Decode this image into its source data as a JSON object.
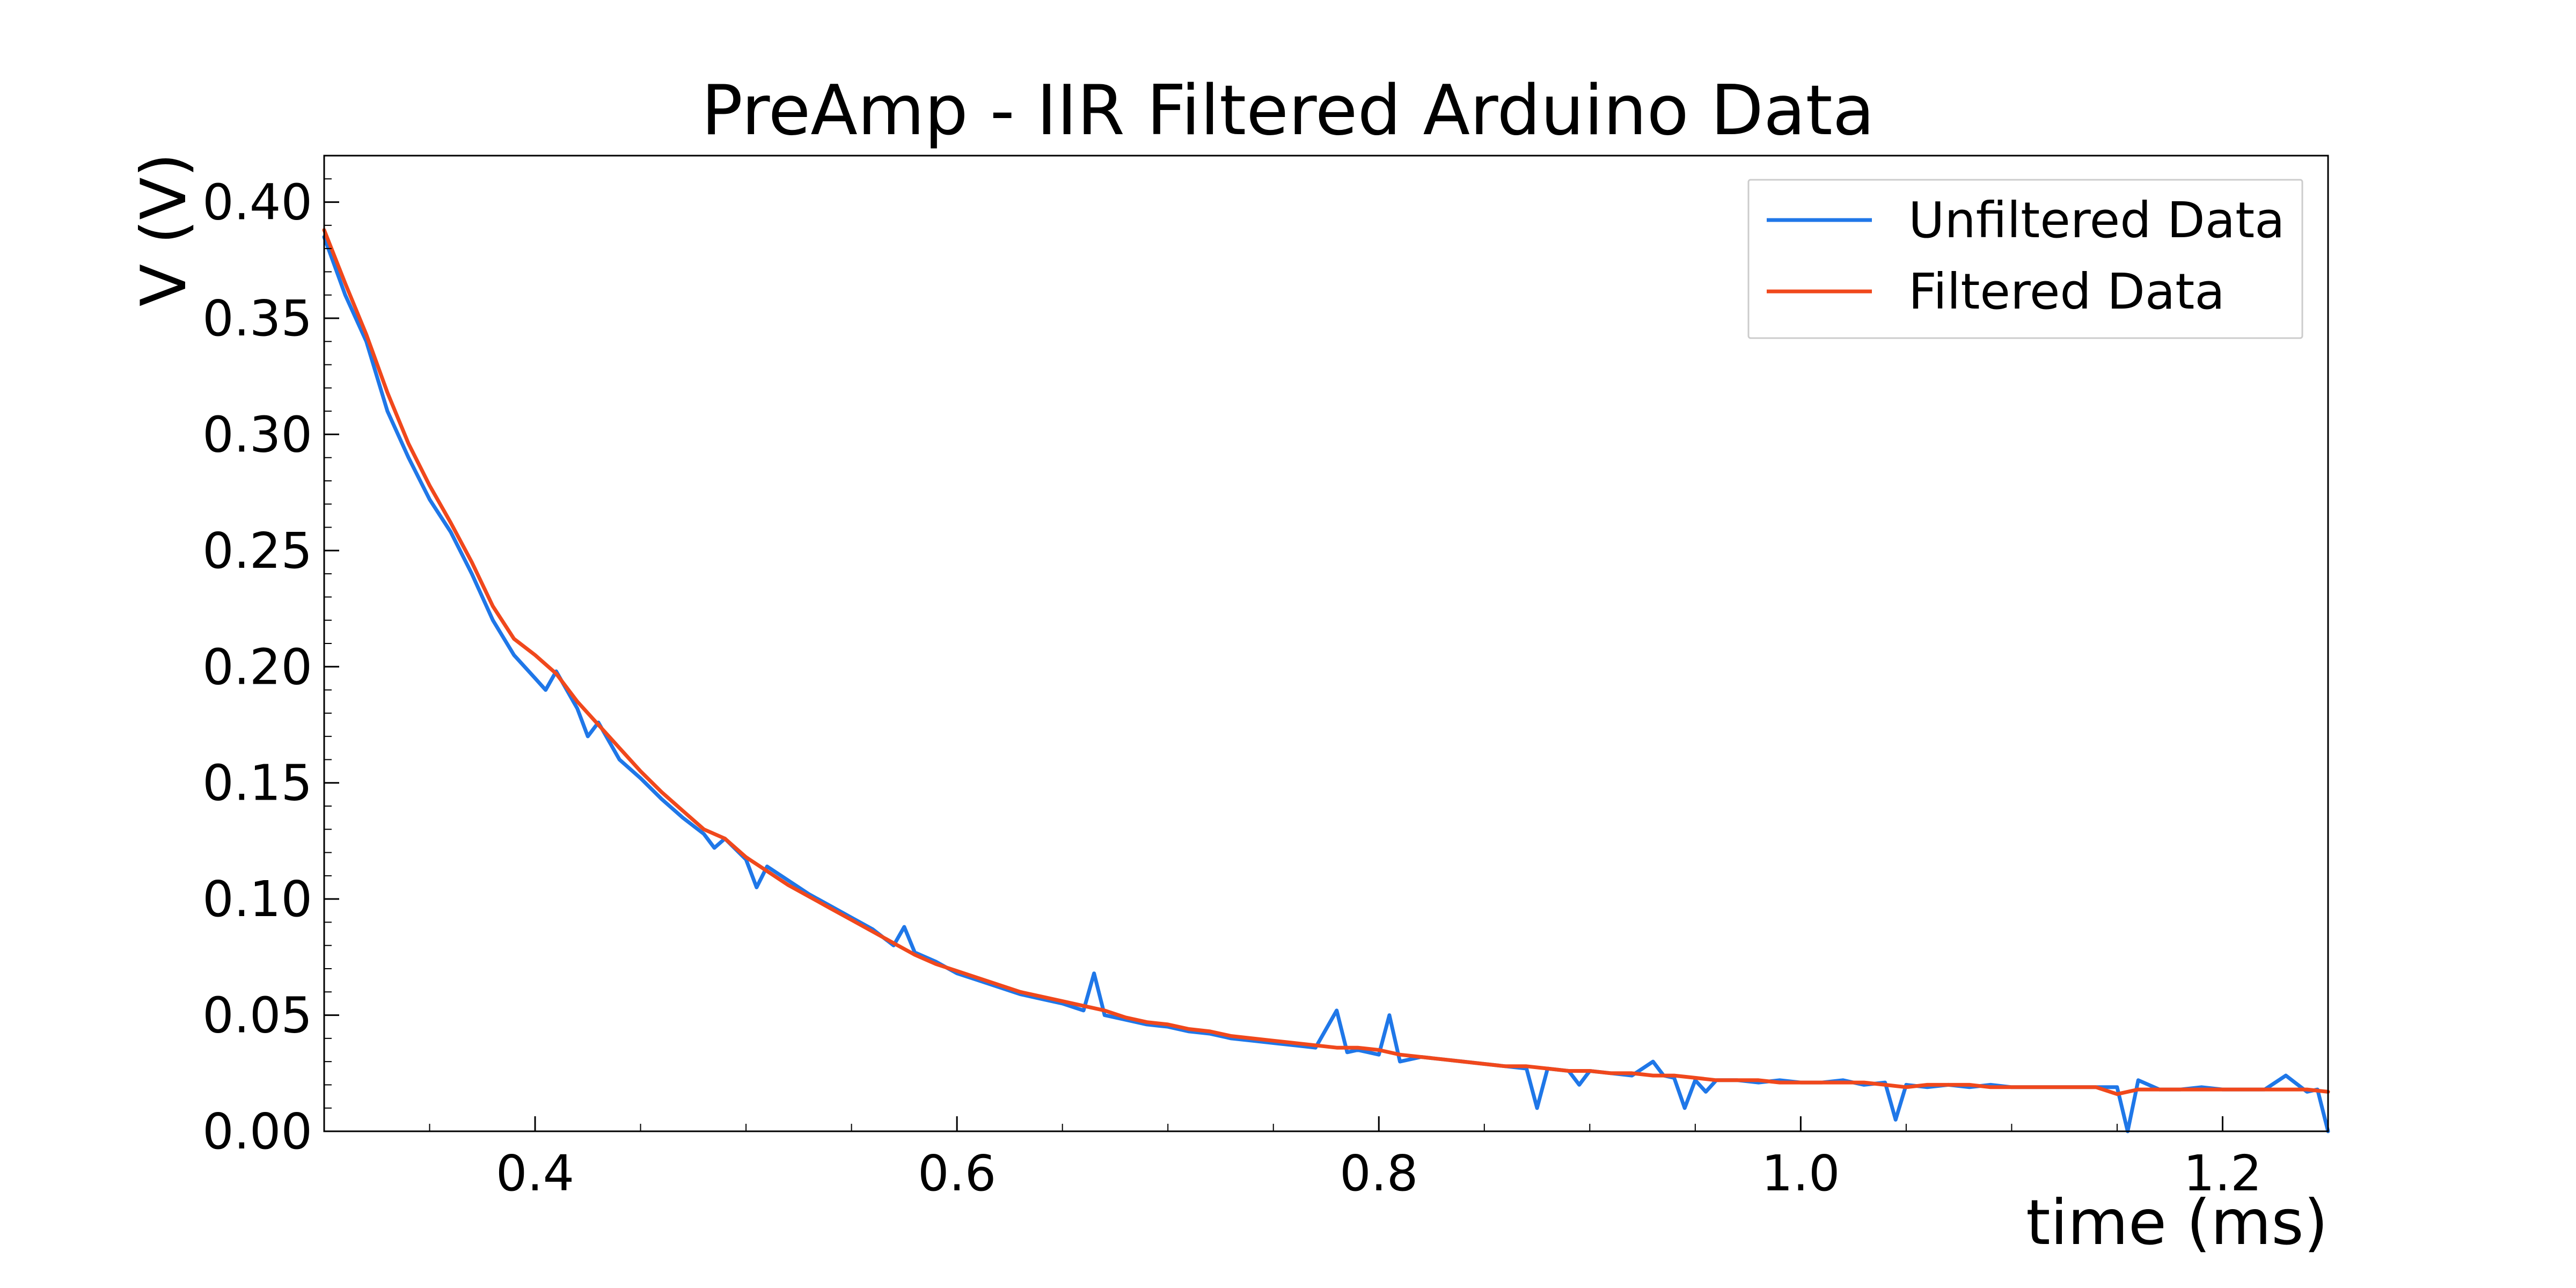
{
  "chart_data": {
    "type": "line",
    "title": "PreAmp - IIR Filtered Arduino Data",
    "xlabel": "time (ms)",
    "ylabel": "V (V)",
    "xlim": [
      0.3,
      1.25
    ],
    "ylim": [
      0.0,
      0.42
    ],
    "x_ticks": [
      0.4,
      0.6,
      0.8,
      1.0,
      1.2
    ],
    "x_tick_labels": [
      "0.4",
      "0.6",
      "0.8",
      "1.0",
      "1.2"
    ],
    "y_ticks": [
      0.0,
      0.05,
      0.1,
      0.15,
      0.2,
      0.25,
      0.3,
      0.35,
      0.4
    ],
    "y_tick_labels": [
      "0.00",
      "0.05",
      "0.10",
      "0.15",
      "0.20",
      "0.25",
      "0.30",
      "0.35",
      "0.40"
    ],
    "grid": false,
    "legend_position": "top-right",
    "series": [
      {
        "name": "Unfiltered Data",
        "color": "#1f77e8",
        "x": [
          0.3,
          0.31,
          0.32,
          0.33,
          0.335,
          0.34,
          0.35,
          0.36,
          0.37,
          0.38,
          0.39,
          0.4,
          0.405,
          0.41,
          0.42,
          0.425,
          0.43,
          0.435,
          0.44,
          0.45,
          0.46,
          0.47,
          0.48,
          0.485,
          0.49,
          0.5,
          0.505,
          0.51,
          0.52,
          0.53,
          0.54,
          0.55,
          0.56,
          0.57,
          0.575,
          0.58,
          0.59,
          0.6,
          0.61,
          0.62,
          0.63,
          0.64,
          0.65,
          0.66,
          0.665,
          0.67,
          0.68,
          0.69,
          0.7,
          0.71,
          0.72,
          0.73,
          0.74,
          0.75,
          0.76,
          0.77,
          0.78,
          0.785,
          0.79,
          0.8,
          0.805,
          0.81,
          0.82,
          0.83,
          0.84,
          0.85,
          0.86,
          0.87,
          0.875,
          0.88,
          0.89,
          0.895,
          0.9,
          0.91,
          0.92,
          0.93,
          0.935,
          0.94,
          0.945,
          0.95,
          0.955,
          0.96,
          0.97,
          0.98,
          0.99,
          1.0,
          1.01,
          1.02,
          1.03,
          1.04,
          1.045,
          1.05,
          1.06,
          1.07,
          1.08,
          1.09,
          1.1,
          1.11,
          1.12,
          1.13,
          1.14,
          1.15,
          1.155,
          1.16,
          1.17,
          1.18,
          1.19,
          1.2,
          1.21,
          1.22,
          1.23,
          1.24,
          1.245,
          1.25
        ],
        "values": [
          0.385,
          0.36,
          0.34,
          0.31,
          0.3,
          0.29,
          0.272,
          0.258,
          0.24,
          0.22,
          0.205,
          0.195,
          0.19,
          0.198,
          0.182,
          0.17,
          0.176,
          0.168,
          0.16,
          0.152,
          0.143,
          0.135,
          0.128,
          0.122,
          0.126,
          0.117,
          0.105,
          0.114,
          0.108,
          0.102,
          0.097,
          0.092,
          0.087,
          0.08,
          0.088,
          0.077,
          0.073,
          0.068,
          0.065,
          0.062,
          0.059,
          0.057,
          0.055,
          0.052,
          0.068,
          0.05,
          0.048,
          0.046,
          0.045,
          0.043,
          0.042,
          0.04,
          0.039,
          0.038,
          0.037,
          0.036,
          0.052,
          0.034,
          0.035,
          0.033,
          0.05,
          0.03,
          0.032,
          0.031,
          0.03,
          0.029,
          0.028,
          0.027,
          0.01,
          0.027,
          0.026,
          0.02,
          0.026,
          0.025,
          0.024,
          0.03,
          0.024,
          0.023,
          0.01,
          0.022,
          0.017,
          0.022,
          0.022,
          0.021,
          0.022,
          0.021,
          0.021,
          0.022,
          0.02,
          0.021,
          0.005,
          0.02,
          0.019,
          0.02,
          0.019,
          0.02,
          0.019,
          0.019,
          0.019,
          0.019,
          0.019,
          0.019,
          0.0,
          0.022,
          0.018,
          0.018,
          0.019,
          0.018,
          0.018,
          0.018,
          0.024,
          0.017,
          0.018,
          0.0
        ]
      },
      {
        "name": "Filtered Data",
        "color": "#f0481c",
        "x": [
          0.3,
          0.31,
          0.32,
          0.33,
          0.34,
          0.35,
          0.36,
          0.37,
          0.38,
          0.39,
          0.4,
          0.41,
          0.42,
          0.43,
          0.44,
          0.45,
          0.46,
          0.47,
          0.48,
          0.49,
          0.5,
          0.51,
          0.52,
          0.53,
          0.54,
          0.55,
          0.56,
          0.57,
          0.58,
          0.59,
          0.6,
          0.61,
          0.62,
          0.63,
          0.64,
          0.65,
          0.66,
          0.67,
          0.68,
          0.69,
          0.7,
          0.71,
          0.72,
          0.73,
          0.74,
          0.75,
          0.76,
          0.77,
          0.78,
          0.79,
          0.8,
          0.81,
          0.82,
          0.83,
          0.84,
          0.85,
          0.86,
          0.87,
          0.88,
          0.89,
          0.9,
          0.91,
          0.92,
          0.93,
          0.94,
          0.95,
          0.96,
          0.97,
          0.98,
          0.99,
          1.0,
          1.01,
          1.02,
          1.03,
          1.04,
          1.05,
          1.06,
          1.07,
          1.08,
          1.09,
          1.1,
          1.11,
          1.12,
          1.13,
          1.14,
          1.15,
          1.16,
          1.17,
          1.18,
          1.19,
          1.2,
          1.21,
          1.22,
          1.23,
          1.24,
          1.25
        ],
        "values": [
          0.388,
          0.365,
          0.343,
          0.318,
          0.296,
          0.278,
          0.262,
          0.245,
          0.226,
          0.212,
          0.205,
          0.197,
          0.185,
          0.175,
          0.165,
          0.155,
          0.146,
          0.138,
          0.13,
          0.126,
          0.118,
          0.112,
          0.106,
          0.101,
          0.096,
          0.091,
          0.086,
          0.081,
          0.076,
          0.072,
          0.069,
          0.066,
          0.063,
          0.06,
          0.058,
          0.056,
          0.054,
          0.052,
          0.049,
          0.047,
          0.046,
          0.044,
          0.043,
          0.041,
          0.04,
          0.039,
          0.038,
          0.037,
          0.036,
          0.036,
          0.035,
          0.033,
          0.032,
          0.031,
          0.03,
          0.029,
          0.028,
          0.028,
          0.027,
          0.026,
          0.026,
          0.025,
          0.025,
          0.024,
          0.024,
          0.023,
          0.022,
          0.022,
          0.022,
          0.021,
          0.021,
          0.021,
          0.021,
          0.021,
          0.02,
          0.019,
          0.02,
          0.02,
          0.02,
          0.019,
          0.019,
          0.019,
          0.019,
          0.019,
          0.019,
          0.016,
          0.018,
          0.018,
          0.018,
          0.018,
          0.018,
          0.018,
          0.018,
          0.018,
          0.018,
          0.017
        ]
      }
    ]
  }
}
